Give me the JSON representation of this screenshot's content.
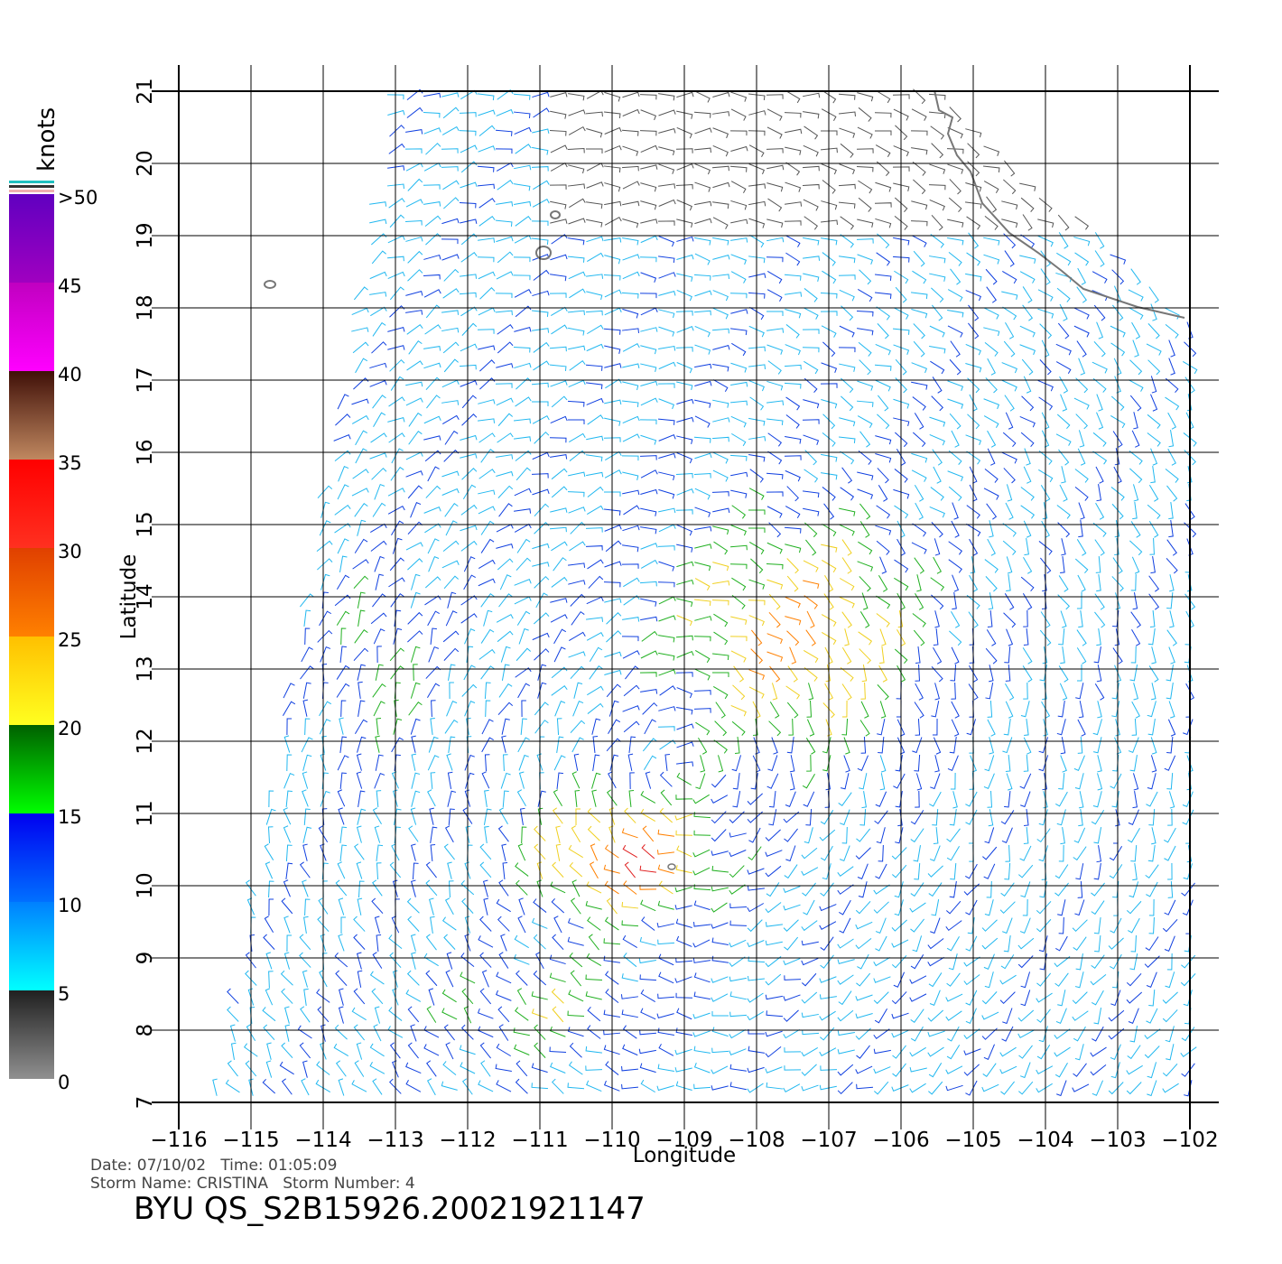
{
  "map": {
    "xlabel": "Longitude",
    "ylabel": "Latitude",
    "xlim": [
      -116,
      -102
    ],
    "ylim": [
      7,
      21
    ],
    "xticks": [
      {
        "value": -116,
        "label": "−116"
      },
      {
        "value": -115,
        "label": "−115"
      },
      {
        "value": -114,
        "label": "−114"
      },
      {
        "value": -113,
        "label": "−113"
      },
      {
        "value": -112,
        "label": "−112"
      },
      {
        "value": -111,
        "label": "−111"
      },
      {
        "value": -110,
        "label": "−110"
      },
      {
        "value": -109,
        "label": "−109"
      },
      {
        "value": -108,
        "label": "−108"
      },
      {
        "value": -107,
        "label": "−107"
      },
      {
        "value": -106,
        "label": "−106"
      },
      {
        "value": -105,
        "label": "−105"
      },
      {
        "value": -104,
        "label": "−104"
      },
      {
        "value": -103,
        "label": "−103"
      },
      {
        "value": -102,
        "label": "−102"
      }
    ],
    "yticks": [
      7,
      8,
      9,
      10,
      11,
      12,
      13,
      14,
      15,
      16,
      17,
      18,
      19,
      20,
      21
    ]
  },
  "colorbar": {
    "unit": "knots",
    "ticks": [
      0,
      5,
      10,
      15,
      20,
      25,
      30,
      35,
      40,
      45,
      {
        "value": 50,
        "label": ">50"
      }
    ]
  },
  "footer": {
    "date_line": "Date: 07/10/02   Time: 01:05:09",
    "storm_line": "Storm Name: CRISTINA   Storm Number: 4",
    "title": "BYU QS_S2B15926.20021921147"
  }
}
